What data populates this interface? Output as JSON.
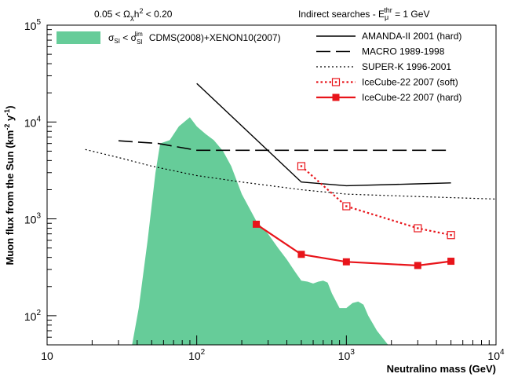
{
  "header": {
    "left": "0.05 < Ω_χh² < 0.20",
    "right": "Indirect searches - E_μ^thr = 1 GeV"
  },
  "chart_data": {
    "type": "line",
    "xlabel": "Neutralino mass (GeV)",
    "ylabel": "Muon flux from the Sun (km⁻² y⁻¹)",
    "x_scale": "log",
    "y_scale": "log",
    "xlim": [
      10,
      10000
    ],
    "ylim": [
      50,
      100000
    ],
    "x_ticks": [
      {
        "value": 10,
        "base": "10",
        "exp": ""
      },
      {
        "value": 100,
        "base": "10",
        "exp": "2"
      },
      {
        "value": 1000,
        "base": "10",
        "exp": "3"
      },
      {
        "value": 10000,
        "base": "10",
        "exp": "4"
      }
    ],
    "y_ticks": [
      {
        "value": 100,
        "base": "10",
        "exp": "2"
      },
      {
        "value": 1000,
        "base": "10",
        "exp": "3"
      },
      {
        "value": 10000,
        "base": "10",
        "exp": "4"
      },
      {
        "value": 100000,
        "base": "10",
        "exp": "5"
      }
    ],
    "grid": false,
    "legend_position": "top-right",
    "band": {
      "label": "σ_SI < σ_SI^lim   CDMS(2008)+XENON10(2007)",
      "color": "#66cc99",
      "upper": [
        [
          37,
          50
        ],
        [
          41,
          120
        ],
        [
          47,
          600
        ],
        [
          53,
          3000
        ],
        [
          57,
          6000
        ],
        [
          66,
          6500
        ],
        [
          76,
          9000
        ],
        [
          90,
          11200
        ],
        [
          100,
          9000
        ],
        [
          115,
          7500
        ],
        [
          130,
          6500
        ],
        [
          150,
          5000
        ],
        [
          170,
          3500
        ],
        [
          200,
          1800
        ],
        [
          250,
          950
        ],
        [
          300,
          700
        ],
        [
          350,
          500
        ],
        [
          400,
          380
        ],
        [
          450,
          290
        ],
        [
          500,
          230
        ],
        [
          550,
          225
        ],
        [
          600,
          215
        ],
        [
          650,
          225
        ],
        [
          700,
          230
        ],
        [
          750,
          220
        ],
        [
          800,
          170
        ],
        [
          900,
          120
        ],
        [
          1000,
          120
        ],
        [
          1100,
          135
        ],
        [
          1200,
          140
        ],
        [
          1300,
          130
        ],
        [
          1400,
          100
        ],
        [
          1600,
          70
        ],
        [
          1900,
          50
        ]
      ]
    },
    "series": [
      {
        "name": "AMANDA-II 2001 (hard)",
        "color": "#000000",
        "style": "solid",
        "width": 1.4,
        "marker": "none",
        "x": [
          100,
          500,
          1000,
          3000,
          5000
        ],
        "y": [
          25000,
          2400,
          2200,
          2300,
          2350
        ]
      },
      {
        "name": "MACRO 1989-1998",
        "color": "#000000",
        "style": "dashed",
        "width": 1.6,
        "marker": "none",
        "x": [
          30,
          55,
          100,
          200,
          500,
          1000,
          5000
        ],
        "y": [
          6400,
          6000,
          5100,
          5100,
          5100,
          5100,
          5100
        ]
      },
      {
        "name": "SUPER-K 1996-2001",
        "color": "#000000",
        "style": "dotted",
        "width": 1.2,
        "marker": "none",
        "x": [
          18,
          30,
          50,
          100,
          200,
          500,
          1000,
          3000,
          10000
        ],
        "y": [
          5200,
          4300,
          3500,
          2800,
          2400,
          2000,
          1800,
          1700,
          1600
        ]
      },
      {
        "name": "IceCube-22 2007 (soft)",
        "color": "#e8141a",
        "style": "dotted",
        "width": 2.2,
        "marker": "open-square",
        "x": [
          500,
          1000,
          3000,
          5000
        ],
        "y": [
          3500,
          1350,
          800,
          680
        ]
      },
      {
        "name": "IceCube-22 2007 (hard)",
        "color": "#e8141a",
        "style": "solid",
        "width": 2.2,
        "marker": "filled-square",
        "x": [
          250,
          500,
          1000,
          3000,
          5000
        ],
        "y": [
          880,
          430,
          360,
          330,
          365
        ]
      }
    ]
  }
}
